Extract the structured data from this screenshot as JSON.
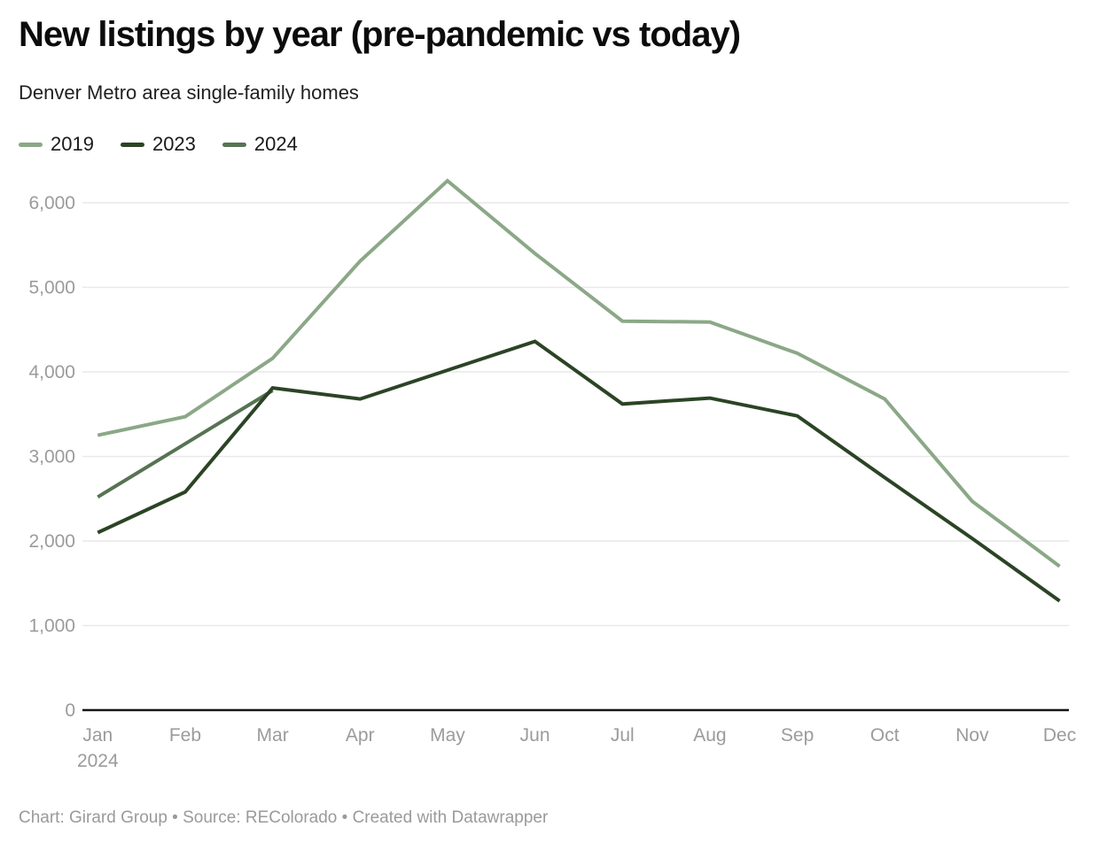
{
  "header": {
    "title": "New listings by year (pre-pandemic vs today)",
    "subtitle": "Denver Metro area single-family homes"
  },
  "chart_data": {
    "type": "line",
    "title": "New listings by year (pre-pandemic vs today)",
    "subtitle": "Denver Metro area single-family homes",
    "xlabel": "",
    "ylabel": "",
    "categories": [
      "Jan",
      "Feb",
      "Mar",
      "Apr",
      "May",
      "Jun",
      "Jul",
      "Aug",
      "Sep",
      "Oct",
      "Nov",
      "Dec"
    ],
    "x_axis_year_note": "2024",
    "series": [
      {
        "name": "2019",
        "color": "#8ba887",
        "values": [
          3250,
          3470,
          4160,
          5310,
          6260,
          5400,
          4600,
          4590,
          4220,
          3680,
          2470,
          1700
        ]
      },
      {
        "name": "2023",
        "color": "#2b4425",
        "values": [
          2100,
          2580,
          3810,
          3680,
          4020,
          4360,
          3620,
          3690,
          3480,
          2750,
          2030,
          1290
        ]
      },
      {
        "name": "2024",
        "color": "#577353",
        "values": [
          2520,
          3150,
          3780,
          null,
          null,
          null,
          null,
          null,
          null,
          null,
          null,
          null
        ]
      }
    ],
    "ylim": [
      0,
      6500
    ],
    "yticks": [
      0,
      1000,
      2000,
      3000,
      4000,
      5000,
      6000
    ],
    "grid": "horizontal",
    "legend_position": "top-left",
    "colors": {
      "gridline": "#e9e9e9",
      "axis_line": "#151515",
      "tick_label": "#9b9b9b"
    }
  },
  "footer": {
    "text": "Chart: Girard Group • Source: REColorado • Created with Datawrapper"
  }
}
